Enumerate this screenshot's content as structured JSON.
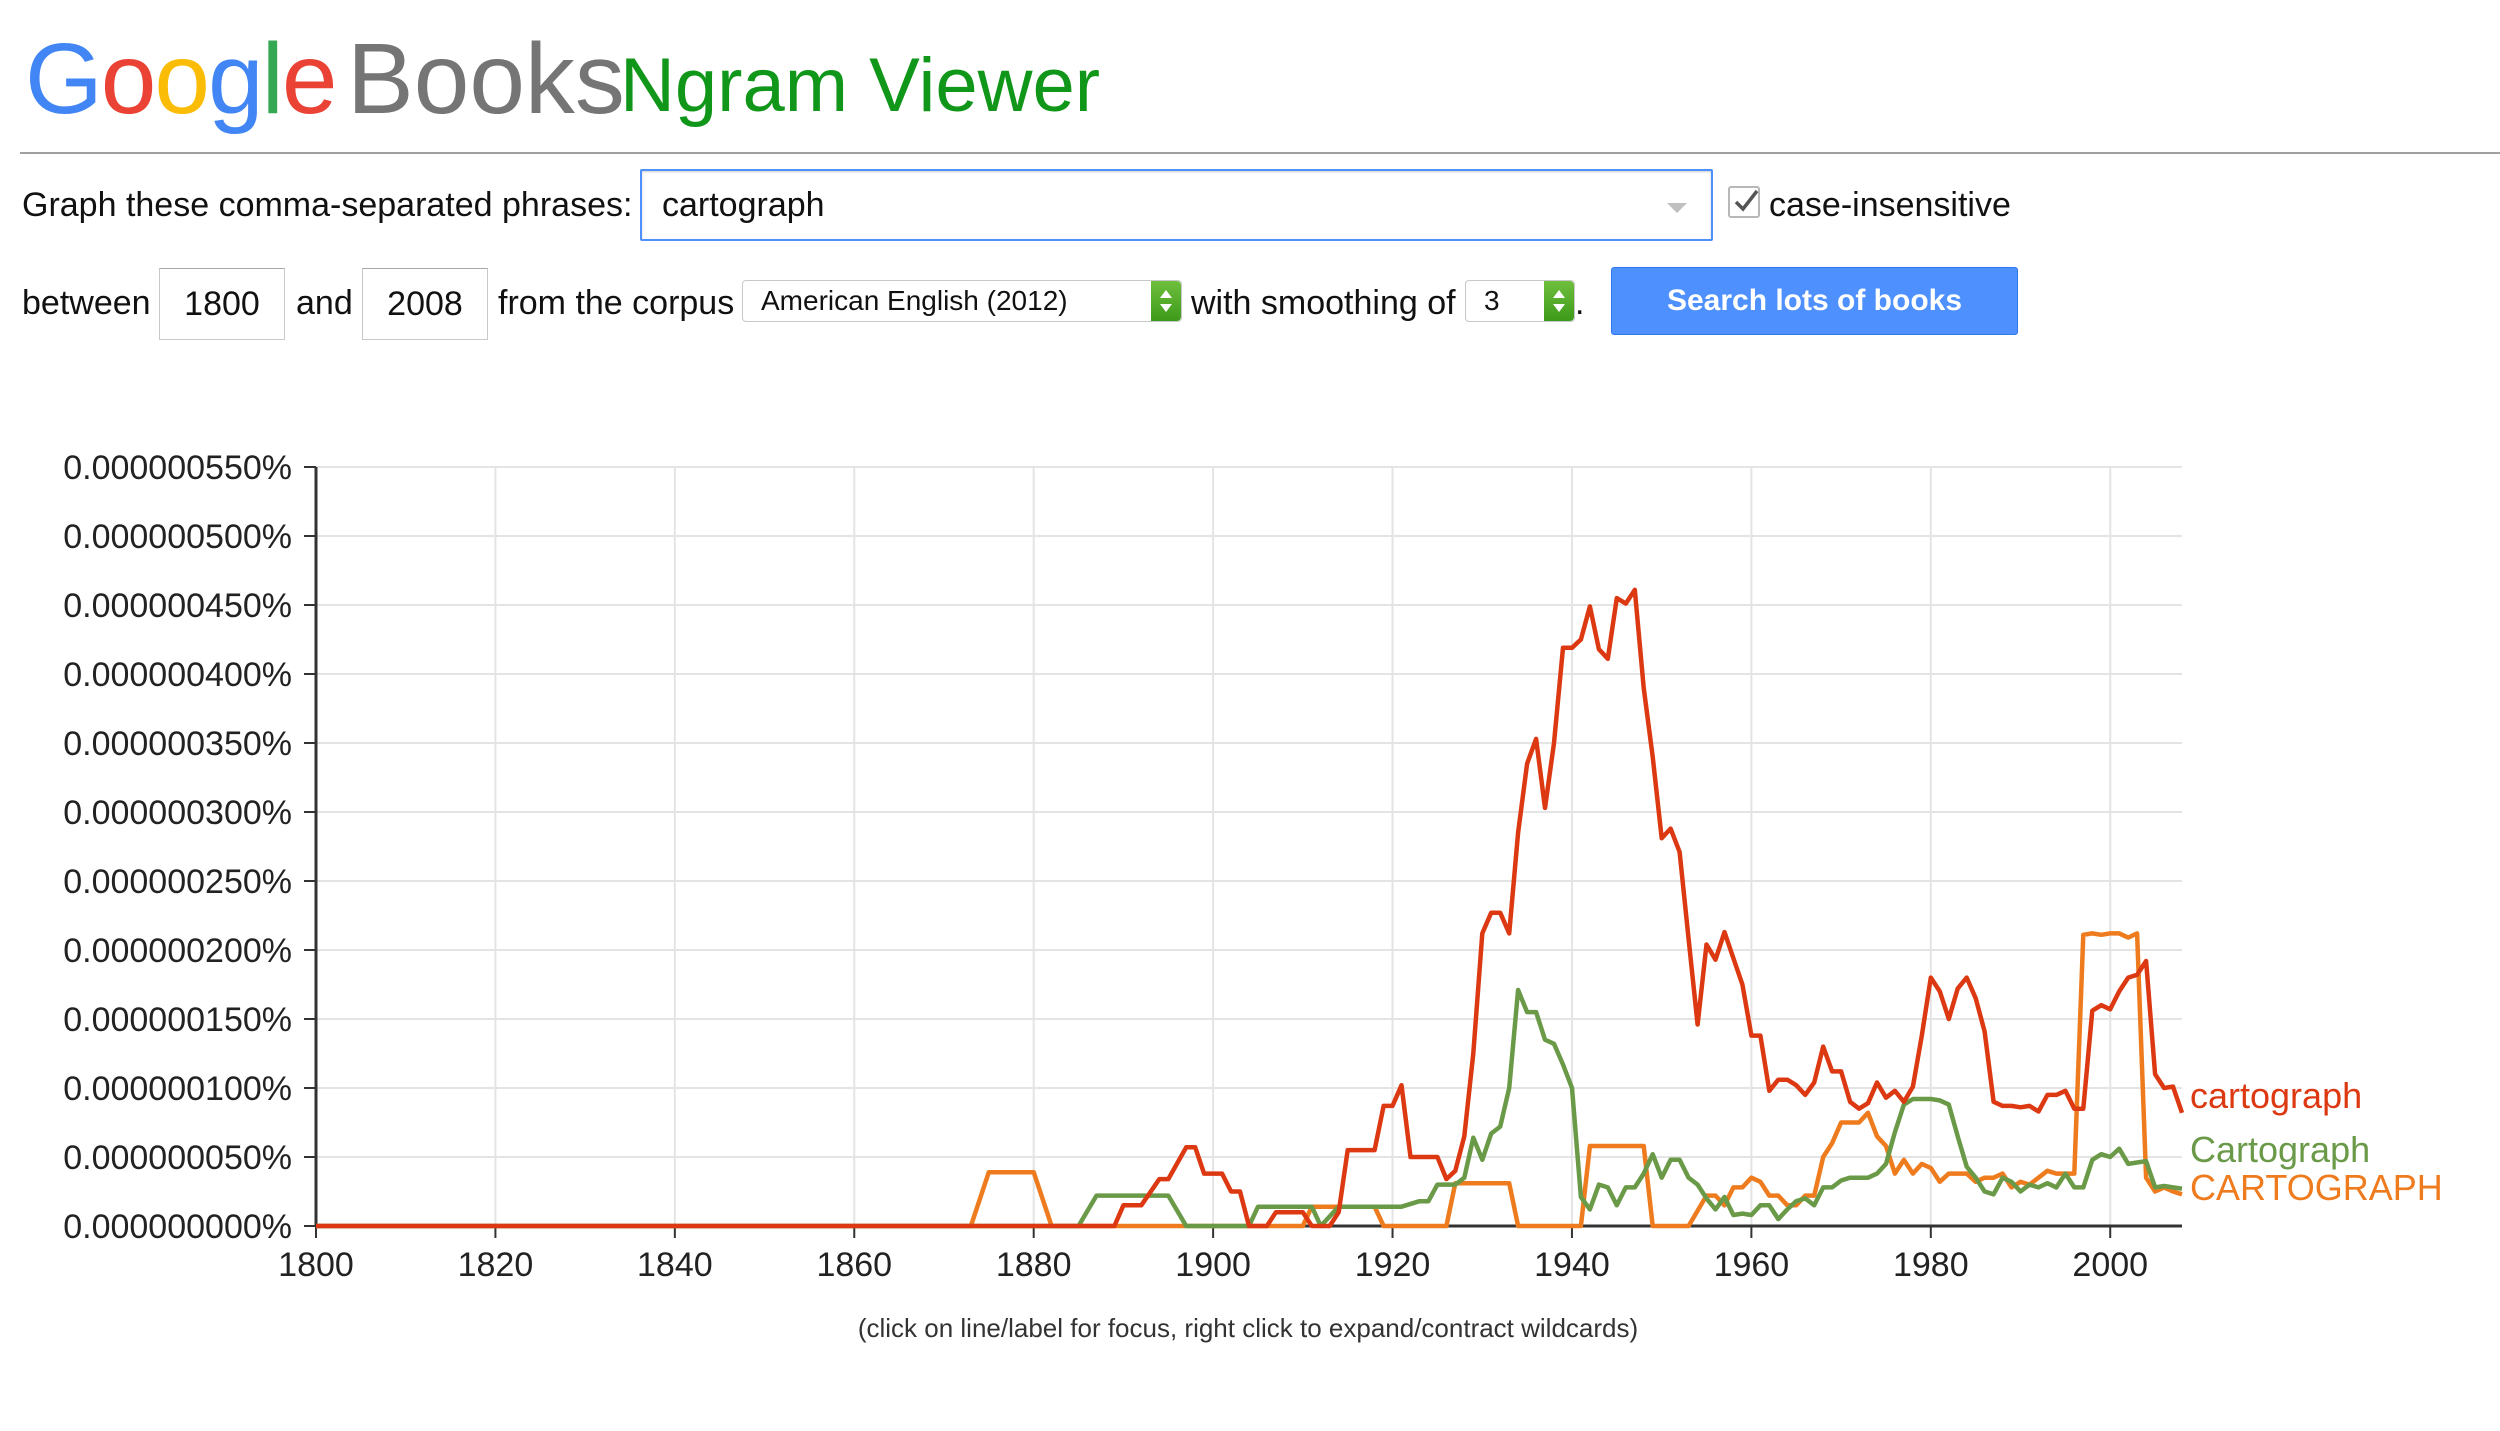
{
  "header": {
    "logo_letters": [
      {
        "ch": "G",
        "color": "#4285F4"
      },
      {
        "ch": "o",
        "color": "#EA4335"
      },
      {
        "ch": "o",
        "color": "#FBBC05"
      },
      {
        "ch": "g",
        "color": "#4285F4"
      },
      {
        "ch": "l",
        "color": "#34A853"
      },
      {
        "ch": "e",
        "color": "#EA4335"
      }
    ],
    "books": "Books",
    "title": "Ngram Viewer"
  },
  "form": {
    "phrases_label": "Graph these comma-separated phrases:",
    "phrases_value": "cartograph",
    "case_insensitive_label": "case-insensitive",
    "case_insensitive_checked": true,
    "between_label": "between",
    "start_year": "1800",
    "and_label": "and",
    "end_year": "2008",
    "corpus_label": "from the corpus",
    "corpus_value": "American English (2012)",
    "smoothing_label": "with smoothing of",
    "smoothing_value": "3",
    "period": ".",
    "search_button": "Search lots of books"
  },
  "footnote": "(click on line/label for focus, right click to expand/contract wildcards)",
  "chart_data": {
    "type": "line",
    "x_range": [
      1800,
      2008
    ],
    "ylim": [
      0,
      5.5e-07
    ],
    "y_unit": "%",
    "y_ticks": [
      "0.000000000%",
      "0.000000050%",
      "0.000000100%",
      "0.000000150%",
      "0.000000200%",
      "0.000000250%",
      "0.000000300%",
      "0.000000350%",
      "0.000000400%",
      "0.000000450%",
      "0.000000500%",
      "0.000000550%"
    ],
    "x_ticks": [
      "1800",
      "1820",
      "1840",
      "1860",
      "1880",
      "1900",
      "1920",
      "1940",
      "1960",
      "1980",
      "2000"
    ],
    "grid": true,
    "legend_placement": "right-end-labels",
    "series": [
      {
        "name": "cartograph",
        "color": "#dc3912",
        "points": [
          [
            1800,
            0
          ],
          [
            1886,
            0
          ],
          [
            1889,
            0
          ],
          [
            1890,
            1.5e-08
          ],
          [
            1892,
            1.5e-08
          ],
          [
            1894,
            3.4e-08
          ],
          [
            1895,
            3.4e-08
          ],
          [
            1897,
            5.7e-08
          ],
          [
            1898,
            5.7e-08
          ],
          [
            1899,
            3.8e-08
          ],
          [
            1901,
            3.8e-08
          ],
          [
            1902,
            2.5e-08
          ],
          [
            1903,
            2.5e-08
          ],
          [
            1904,
            0
          ],
          [
            1906,
            0
          ],
          [
            1907,
            1e-08
          ],
          [
            1910,
            1e-08
          ],
          [
            1911,
            0
          ],
          [
            1913,
            0
          ],
          [
            1914,
            1e-08
          ],
          [
            1915,
            5.5e-08
          ],
          [
            1918,
            5.5e-08
          ],
          [
            1919,
            8.7e-08
          ],
          [
            1920,
            8.7e-08
          ],
          [
            1921,
            1.02e-07
          ],
          [
            1922,
            5e-08
          ],
          [
            1925,
            5e-08
          ],
          [
            1926,
            3.4e-08
          ],
          [
            1927,
            4e-08
          ],
          [
            1928,
            6.5e-08
          ],
          [
            1929,
            1.25e-07
          ],
          [
            1930,
            2.12e-07
          ],
          [
            1931,
            2.27e-07
          ],
          [
            1932,
            2.27e-07
          ],
          [
            1933,
            2.12e-07
          ],
          [
            1934,
            2.85e-07
          ],
          [
            1935,
            3.35e-07
          ],
          [
            1936,
            3.53e-07
          ],
          [
            1937,
            3.03e-07
          ],
          [
            1938,
            3.5e-07
          ],
          [
            1939,
            4.19e-07
          ],
          [
            1940,
            4.19e-07
          ],
          [
            1941,
            4.25e-07
          ],
          [
            1942,
            4.49e-07
          ],
          [
            1943,
            4.18e-07
          ],
          [
            1944,
            4.11e-07
          ],
          [
            1945,
            4.55e-07
          ],
          [
            1946,
            4.51e-07
          ],
          [
            1947,
            4.61e-07
          ],
          [
            1948,
            3.9e-07
          ],
          [
            1949,
            3.4e-07
          ],
          [
            1950,
            2.81e-07
          ],
          [
            1951,
            2.88e-07
          ],
          [
            1952,
            2.71e-07
          ],
          [
            1953,
            2.08e-07
          ],
          [
            1954,
            1.46e-07
          ],
          [
            1955,
            2.04e-07
          ],
          [
            1956,
            1.93e-07
          ],
          [
            1957,
            2.13e-07
          ],
          [
            1958,
            1.94e-07
          ],
          [
            1959,
            1.75e-07
          ],
          [
            1960,
            1.38e-07
          ],
          [
            1961,
            1.38e-07
          ],
          [
            1962,
            9.8e-08
          ],
          [
            1963,
            1.06e-07
          ],
          [
            1964,
            1.06e-07
          ],
          [
            1965,
            1.02e-07
          ],
          [
            1966,
            9.5e-08
          ],
          [
            1967,
            1.04e-07
          ],
          [
            1968,
            1.3e-07
          ],
          [
            1969,
            1.12e-07
          ],
          [
            1970,
            1.12e-07
          ],
          [
            1971,
            9e-08
          ],
          [
            1972,
            8.5e-08
          ],
          [
            1973,
            8.9e-08
          ],
          [
            1974,
            1.04e-07
          ],
          [
            1975,
            9.3e-08
          ],
          [
            1976,
            9.8e-08
          ],
          [
            1977,
            9e-08
          ],
          [
            1978,
            1.01e-07
          ],
          [
            1979,
            1.38e-07
          ],
          [
            1980,
            1.8e-07
          ],
          [
            1981,
            1.7e-07
          ],
          [
            1982,
            1.5e-07
          ],
          [
            1983,
            1.72e-07
          ],
          [
            1984,
            1.8e-07
          ],
          [
            1985,
            1.65e-07
          ],
          [
            1986,
            1.41e-07
          ],
          [
            1987,
            9e-08
          ],
          [
            1988,
            8.7e-08
          ],
          [
            1989,
            8.7e-08
          ],
          [
            1990,
            8.6e-08
          ],
          [
            1991,
            8.7e-08
          ],
          [
            1992,
            8.3e-08
          ],
          [
            1993,
            9.5e-08
          ],
          [
            1994,
            9.5e-08
          ],
          [
            1995,
            9.8e-08
          ],
          [
            1996,
            8.5e-08
          ],
          [
            1997,
            8.5e-08
          ],
          [
            1998,
            1.56e-07
          ],
          [
            1999,
            1.6e-07
          ],
          [
            2000,
            1.57e-07
          ],
          [
            2001,
            1.7e-07
          ],
          [
            2002,
            1.8e-07
          ],
          [
            2003,
            1.82e-07
          ],
          [
            2004,
            1.92e-07
          ],
          [
            2005,
            1.1e-07
          ],
          [
            2006,
            1e-07
          ],
          [
            2007,
            1.01e-07
          ],
          [
            2008,
            8.2e-08
          ]
        ]
      },
      {
        "name": "Cartograph",
        "color": "#6a9a48",
        "points": [
          [
            1800,
            0
          ],
          [
            1885,
            0
          ],
          [
            1887,
            2.2e-08
          ],
          [
            1895,
            2.2e-08
          ],
          [
            1897,
            0
          ],
          [
            1904,
            0
          ],
          [
            1905,
            1.4e-08
          ],
          [
            1911,
            1.4e-08
          ],
          [
            1912,
            0
          ],
          [
            1914,
            1.4e-08
          ],
          [
            1921,
            1.4e-08
          ],
          [
            1923,
            1.8e-08
          ],
          [
            1924,
            1.8e-08
          ],
          [
            1925,
            3e-08
          ],
          [
            1926,
            3e-08
          ],
          [
            1927,
            3e-08
          ],
          [
            1928,
            3.5e-08
          ],
          [
            1929,
            6.4e-08
          ],
          [
            1930,
            4.8e-08
          ],
          [
            1931,
            6.7e-08
          ],
          [
            1932,
            7.2e-08
          ],
          [
            1933,
            1e-07
          ],
          [
            1934,
            1.71e-07
          ],
          [
            1935,
            1.55e-07
          ],
          [
            1936,
            1.55e-07
          ],
          [
            1937,
            1.35e-07
          ],
          [
            1938,
            1.32e-07
          ],
          [
            1939,
            1.17e-07
          ],
          [
            1940,
            1e-07
          ],
          [
            1941,
            2.1e-08
          ],
          [
            1942,
            1.2e-08
          ],
          [
            1943,
            3e-08
          ],
          [
            1944,
            2.8e-08
          ],
          [
            1945,
            1.5e-08
          ],
          [
            1946,
            2.8e-08
          ],
          [
            1947,
            2.8e-08
          ],
          [
            1948,
            3.8e-08
          ],
          [
            1949,
            5.2e-08
          ],
          [
            1950,
            3.5e-08
          ],
          [
            1951,
            4.8e-08
          ],
          [
            1952,
            4.8e-08
          ],
          [
            1953,
            3.5e-08
          ],
          [
            1954,
            3e-08
          ],
          [
            1955,
            2e-08
          ],
          [
            1956,
            1.2e-08
          ],
          [
            1957,
            2.1e-08
          ],
          [
            1958,
            8e-09
          ],
          [
            1959,
            9e-09
          ],
          [
            1960,
            8e-09
          ],
          [
            1961,
            1.5e-08
          ],
          [
            1962,
            1.5e-08
          ],
          [
            1963,
            5e-09
          ],
          [
            1964,
            1.2e-08
          ],
          [
            1965,
            1.8e-08
          ],
          [
            1966,
            2e-08
          ],
          [
            1967,
            1.5e-08
          ],
          [
            1968,
            2.8e-08
          ],
          [
            1969,
            2.8e-08
          ],
          [
            1970,
            3.3e-08
          ],
          [
            1971,
            3.5e-08
          ],
          [
            1972,
            3.5e-08
          ],
          [
            1973,
            3.5e-08
          ],
          [
            1974,
            3.8e-08
          ],
          [
            1975,
            4.5e-08
          ],
          [
            1976,
            6.8e-08
          ],
          [
            1977,
            8.8e-08
          ],
          [
            1978,
            9.2e-08
          ],
          [
            1979,
            9.2e-08
          ],
          [
            1980,
            9.2e-08
          ],
          [
            1981,
            9.1e-08
          ],
          [
            1982,
            8.8e-08
          ],
          [
            1983,
            6.5e-08
          ],
          [
            1984,
            4.3e-08
          ],
          [
            1985,
            3.5e-08
          ],
          [
            1986,
            2.5e-08
          ],
          [
            1987,
            2.3e-08
          ],
          [
            1988,
            3.5e-08
          ],
          [
            1989,
            3.2e-08
          ],
          [
            1990,
            2.5e-08
          ],
          [
            1991,
            3e-08
          ],
          [
            1992,
            2.8e-08
          ],
          [
            1993,
            3.1e-08
          ],
          [
            1994,
            2.8e-08
          ],
          [
            1995,
            3.8e-08
          ],
          [
            1996,
            2.8e-08
          ],
          [
            1997,
            2.8e-08
          ],
          [
            1998,
            4.8e-08
          ],
          [
            1999,
            5.2e-08
          ],
          [
            2000,
            5e-08
          ],
          [
            2001,
            5.6e-08
          ],
          [
            2002,
            4.5e-08
          ],
          [
            2003,
            4.6e-08
          ],
          [
            2004,
            4.7e-08
          ],
          [
            2005,
            2.8e-08
          ],
          [
            2006,
            2.9e-08
          ],
          [
            2007,
            2.8e-08
          ],
          [
            2008,
            2.7e-08
          ]
        ]
      },
      {
        "name": "CARTOGRAPH",
        "color": "#ee7b1d",
        "points": [
          [
            1800,
            0
          ],
          [
            1873,
            0
          ],
          [
            1875,
            3.9e-08
          ],
          [
            1880,
            3.9e-08
          ],
          [
            1882,
            0
          ],
          [
            1910,
            0
          ],
          [
            1911,
            1.4e-08
          ],
          [
            1918,
            1.4e-08
          ],
          [
            1919,
            0
          ],
          [
            1926,
            0
          ],
          [
            1927,
            3.1e-08
          ],
          [
            1933,
            3.1e-08
          ],
          [
            1934,
            0
          ],
          [
            1941,
            0
          ],
          [
            1942,
            5.8e-08
          ],
          [
            1948,
            5.8e-08
          ],
          [
            1949,
            0
          ],
          [
            1953,
            0
          ],
          [
            1955,
            2.2e-08
          ],
          [
            1956,
            2.2e-08
          ],
          [
            1957,
            1.5e-08
          ],
          [
            1958,
            2.8e-08
          ],
          [
            1959,
            2.8e-08
          ],
          [
            1960,
            3.5e-08
          ],
          [
            1961,
            3.2e-08
          ],
          [
            1962,
            2.2e-08
          ],
          [
            1963,
            2.2e-08
          ],
          [
            1964,
            1.5e-08
          ],
          [
            1965,
            1.5e-08
          ],
          [
            1966,
            2.2e-08
          ],
          [
            1967,
            2.2e-08
          ],
          [
            1968,
            5e-08
          ],
          [
            1969,
            6e-08
          ],
          [
            1970,
            7.5e-08
          ],
          [
            1971,
            7.5e-08
          ],
          [
            1972,
            7.5e-08
          ],
          [
            1973,
            8.2e-08
          ],
          [
            1974,
            6.5e-08
          ],
          [
            1975,
            5.8e-08
          ],
          [
            1976,
            3.8e-08
          ],
          [
            1977,
            4.8e-08
          ],
          [
            1978,
            3.8e-08
          ],
          [
            1979,
            4.5e-08
          ],
          [
            1980,
            4.2e-08
          ],
          [
            1981,
            3.2e-08
          ],
          [
            1982,
            3.8e-08
          ],
          [
            1983,
            3.8e-08
          ],
          [
            1984,
            3.8e-08
          ],
          [
            1985,
            3.2e-08
          ],
          [
            1986,
            3.5e-08
          ],
          [
            1987,
            3.5e-08
          ],
          [
            1988,
            3.8e-08
          ],
          [
            1989,
            2.8e-08
          ],
          [
            1990,
            3.2e-08
          ],
          [
            1991,
            3e-08
          ],
          [
            1992,
            3.5e-08
          ],
          [
            1993,
            4e-08
          ],
          [
            1994,
            3.8e-08
          ],
          [
            1995,
            3.8e-08
          ],
          [
            1996,
            3.8e-08
          ],
          [
            1997,
            2.11e-07
          ],
          [
            1998,
            2.12e-07
          ],
          [
            1999,
            2.11e-07
          ],
          [
            2000,
            2.12e-07
          ],
          [
            2001,
            2.12e-07
          ],
          [
            2002,
            2.09e-07
          ],
          [
            2003,
            2.12e-07
          ],
          [
            2004,
            3.5e-08
          ],
          [
            2005,
            2.5e-08
          ],
          [
            2006,
            2.8e-08
          ],
          [
            2007,
            2.5e-08
          ],
          [
            2008,
            2.3e-08
          ]
        ]
      }
    ]
  }
}
